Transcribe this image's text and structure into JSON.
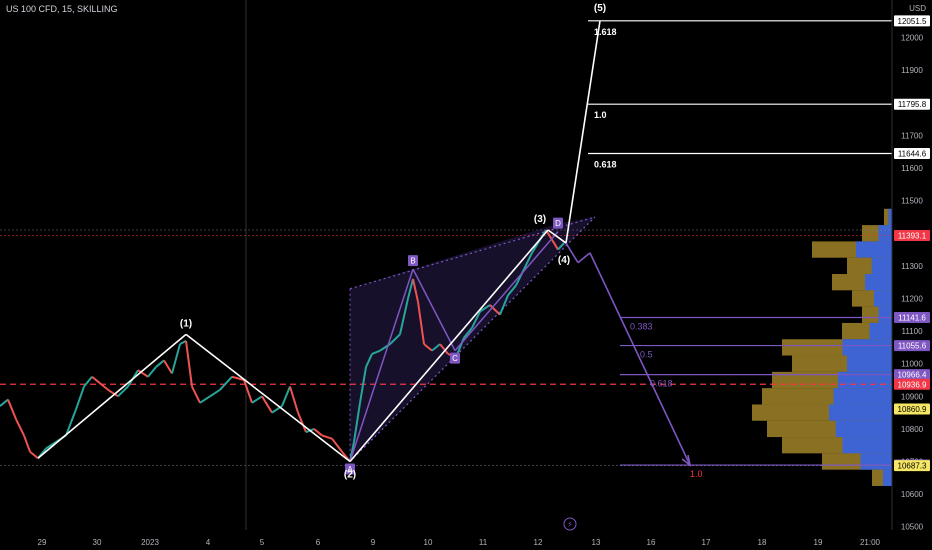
{
  "header": {
    "symbol": "US 100 CFD, 15, SKILLING",
    "currency": "USD"
  },
  "colors": {
    "background": "#000000",
    "wave_line": "#ffffff",
    "pattern": "#7e57c2",
    "pattern_fill": "#1a1230",
    "candle_up": "#26a69a",
    "candle_down": "#ef5350",
    "profile_gold": "#b8962e",
    "profile_blue": "#2962ff",
    "dashed_level": "#f23645",
    "fib_down": "#ffffff",
    "fib_up": "#7e57c2"
  },
  "chart_data": {
    "type": "line",
    "title": "US 100 CFD, 15, SKILLING",
    "ylim": [
      10490,
      12100
    ],
    "y_ticks": [
      10500,
      10600,
      10700,
      10800,
      10900,
      11000,
      11100,
      11200,
      11300,
      11400,
      11500,
      11600,
      11700,
      11800,
      11900,
      12000
    ],
    "x_ticks": [
      "29",
      "30",
      "2023",
      "4",
      "5",
      "6",
      "9",
      "10",
      "11",
      "12",
      "13",
      "16",
      "17",
      "18",
      "19",
      "21:00"
    ],
    "price_path": [
      [
        0,
        10870
      ],
      [
        8,
        10890
      ],
      [
        16,
        10830
      ],
      [
        24,
        10780
      ],
      [
        30,
        10730
      ],
      [
        38,
        10710
      ],
      [
        46,
        10740
      ],
      [
        56,
        10760
      ],
      [
        66,
        10780
      ],
      [
        76,
        10860
      ],
      [
        84,
        10930
      ],
      [
        92,
        10960
      ],
      [
        100,
        10940
      ],
      [
        108,
        10920
      ],
      [
        118,
        10900
      ],
      [
        128,
        10930
      ],
      [
        138,
        10980
      ],
      [
        148,
        10960
      ],
      [
        156,
        10990
      ],
      [
        164,
        11010
      ],
      [
        172,
        10970
      ],
      [
        180,
        11060
      ],
      [
        186,
        11070
      ],
      [
        192,
        10930
      ],
      [
        200,
        10880
      ],
      [
        210,
        10900
      ],
      [
        220,
        10920
      ],
      [
        232,
        10960
      ],
      [
        244,
        10950
      ],
      [
        252,
        10880
      ],
      [
        262,
        10900
      ],
      [
        272,
        10850
      ],
      [
        282,
        10870
      ],
      [
        290,
        10930
      ],
      [
        298,
        10850
      ],
      [
        306,
        10790
      ],
      [
        314,
        10800
      ],
      [
        322,
        10780
      ],
      [
        332,
        10770
      ],
      [
        342,
        10730
      ],
      [
        350,
        10700
      ],
      [
        354,
        10760
      ],
      [
        360,
        10880
      ],
      [
        366,
        10990
      ],
      [
        372,
        11030
      ],
      [
        380,
        11040
      ],
      [
        390,
        11060
      ],
      [
        400,
        11090
      ],
      [
        408,
        11200
      ],
      [
        413,
        11260
      ],
      [
        418,
        11190
      ],
      [
        424,
        11060
      ],
      [
        432,
        11040
      ],
      [
        440,
        11060
      ],
      [
        448,
        11030
      ],
      [
        456,
        11020
      ],
      [
        464,
        11080
      ],
      [
        472,
        11110
      ],
      [
        480,
        11160
      ],
      [
        490,
        11180
      ],
      [
        500,
        11150
      ],
      [
        508,
        11210
      ],
      [
        516,
        11240
      ],
      [
        524,
        11290
      ],
      [
        532,
        11340
      ],
      [
        540,
        11380
      ],
      [
        546,
        11410
      ],
      [
        552,
        11380
      ],
      [
        558,
        11350
      ],
      [
        564,
        11370
      ]
    ],
    "waves": {
      "labels": [
        "(1)",
        "(2)",
        "(3)",
        "(4)",
        "(5)"
      ],
      "points": [
        [
          38,
          10710
        ],
        [
          186,
          11090
        ],
        [
          350,
          10700
        ],
        [
          548,
          11410
        ],
        [
          566,
          11370
        ],
        [
          600,
          12051.5
        ]
      ]
    },
    "abcd": {
      "labels": [
        "A",
        "B",
        "C",
        "D"
      ],
      "points": [
        [
          350,
          10700
        ],
        [
          413,
          11290
        ],
        [
          455,
          11040
        ],
        [
          558,
          11405
        ]
      ]
    },
    "projection": [
      [
        566,
        11370
      ],
      [
        578,
        11310
      ],
      [
        590,
        11340
      ],
      [
        690,
        10689.2
      ]
    ],
    "fib_up": [
      {
        "label": "1.618",
        "value": 12051.5
      },
      {
        "label": "1.0",
        "value": 11795.8
      },
      {
        "label": "0.618",
        "value": 11644.6
      }
    ],
    "fib_down": [
      {
        "label": "0.383",
        "value": 11141.6
      },
      {
        "label": "0.5",
        "value": 11055.6
      },
      {
        "label": "0.618",
        "value": 10966.4
      },
      {
        "label": "1.0",
        "value": 10689.2
      }
    ],
    "price_tags": [
      {
        "value": 12051.5,
        "label": "12051.5",
        "bg": "#ffffff",
        "fg": "#000000"
      },
      {
        "value": 11795.8,
        "label": "11795.8",
        "bg": "#ffffff",
        "fg": "#000000"
      },
      {
        "value": 11644.6,
        "label": "11644.6",
        "bg": "#ffffff",
        "fg": "#000000"
      },
      {
        "value": 11393.1,
        "label": "11393.1",
        "bg": "#f23645",
        "fg": "#ffffff"
      },
      {
        "value": 11141.6,
        "label": "11141.6",
        "bg": "#7e57c2",
        "fg": "#ffffff"
      },
      {
        "value": 11055.6,
        "label": "11055.6",
        "bg": "#7e57c2",
        "fg": "#ffffff"
      },
      {
        "value": 10966.4,
        "label": "10966.4",
        "bg": "#7e57c2",
        "fg": "#ffffff"
      },
      {
        "value": 10936.9,
        "label": "10936.9",
        "bg": "#f23645",
        "fg": "#ffffff"
      },
      {
        "value": 10860.9,
        "label": "10860.9",
        "bg": "#f5e663",
        "fg": "#000000"
      },
      {
        "value": 10689.2,
        "label": "10689.2",
        "bg": "#7e57c2",
        "fg": "#ffffff"
      },
      {
        "value": 10687.3,
        "label": "10687.3",
        "bg": "#f5e663",
        "fg": "#000000"
      }
    ],
    "dashed_level": 10936.9,
    "current_price": 11393.1
  }
}
